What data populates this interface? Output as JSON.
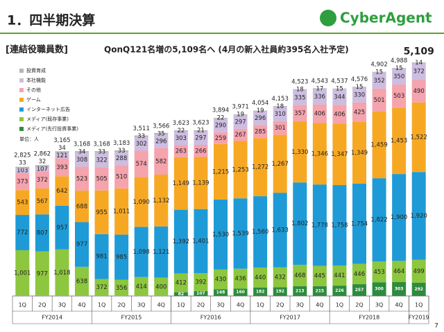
{
  "title": "1．四半期決算",
  "logo": "CyberAgent",
  "page_number": "7",
  "chart_data": {
    "type": "stacked_bar",
    "subtitle": "[連結役職員数]",
    "headline": "QonQ121名増の5,109名へ (4月の新入社員約395名入社予定)",
    "unit_note": "単位：人",
    "categories": [
      "1Q",
      "2Q",
      "3Q",
      "4Q",
      "1Q",
      "2Q",
      "3Q",
      "4Q",
      "1Q",
      "2Q",
      "3Q",
      "4Q",
      "1Q",
      "2Q",
      "3Q",
      "4Q",
      "1Q",
      "2Q",
      "3Q",
      "4Q",
      "1Q"
    ],
    "groups": [
      {
        "label": "FY2014",
        "count": 4
      },
      {
        "label": "FY2015",
        "count": 4
      },
      {
        "label": "FY2016",
        "count": 4
      },
      {
        "label": "FY2017",
        "count": 4
      },
      {
        "label": "FY2018",
        "count": 4
      },
      {
        "label": "FY2019",
        "count": 1
      }
    ],
    "series": [
      {
        "name": "メディア(先行投資事業)",
        "color": "#2e8b3e",
        "values": [
          null,
          null,
          null,
          null,
          null,
          null,
          null,
          null,
          82,
          107,
          148,
          160,
          182,
          192,
          213,
          215,
          226,
          257,
          300,
          303,
          292
        ],
        "value_labels": [
          null,
          null,
          null,
          null,
          null,
          null,
          null,
          null,
          "82",
          "107",
          "148",
          "160",
          "182",
          "192",
          "213",
          "215",
          "226",
          "257",
          "300",
          "303",
          "292"
        ]
      },
      {
        "name": "メディア(既存事業)",
        "color": "#8dc63f",
        "values": [
          1001,
          977,
          1018,
          638,
          372,
          356,
          414,
          400,
          412,
          392,
          430,
          436,
          440,
          432,
          468,
          445,
          441,
          446,
          453,
          464,
          499
        ],
        "value_labels": [
          "1,001",
          "977",
          "1,018",
          "638",
          "372",
          "356",
          "414",
          "400",
          "412",
          "392",
          "430",
          "436",
          "440",
          "432",
          "468",
          "445",
          "441",
          "446",
          "453",
          "464",
          "499"
        ]
      },
      {
        "name": "インターネット広告",
        "color": "#1e9bd7",
        "values": [
          772,
          807,
          957,
          977,
          981,
          985,
          1098,
          1121,
          1392,
          1401,
          1530,
          1539,
          1560,
          1633,
          1802,
          1778,
          1758,
          1754,
          1822,
          1900,
          1920
        ],
        "value_labels": [
          "772",
          "807",
          "957",
          "977",
          "981",
          "985",
          "1,098",
          "1,121",
          "1,392",
          "1,401",
          "1,530",
          "1,539",
          "1,560",
          "1,633",
          "1,802",
          "1,778",
          "1,758",
          "1,754",
          "1,822",
          "1,900",
          "1,920"
        ]
      },
      {
        "name": "ゲーム",
        "color": "#f7a823",
        "values": [
          543,
          567,
          642,
          688,
          955,
          1011,
          1090,
          1132,
          1149,
          1139,
          1215,
          1253,
          1272,
          1267,
          1330,
          1346,
          1347,
          1349,
          1459,
          1453,
          1522
        ],
        "value_labels": [
          "543",
          "567",
          "642",
          "688",
          "955",
          "1,011",
          "1,090",
          "1,132",
          "1,149",
          "1,139",
          "1,215",
          "1,253",
          "1,272",
          "1,267",
          "1,330",
          "1,346",
          "1,347",
          "1,349",
          "1,459",
          "1,453",
          "1,522"
        ]
      },
      {
        "name": "その他",
        "color": "#f5a3ad",
        "values": [
          373,
          372,
          393,
          523,
          505,
          510,
          574,
          582,
          263,
          266,
          259,
          267,
          285,
          301,
          357,
          406,
          406,
          425,
          501,
          503,
          490
        ]
      },
      {
        "name": "本社機能",
        "color": "#cdbde0",
        "values": [
          103,
          107,
          121,
          308,
          322,
          288,
          302,
          296,
          303,
          297,
          290,
          297,
          296,
          310,
          335,
          336,
          344,
          330,
          352,
          350,
          372
        ]
      },
      {
        "name": "投資育成",
        "color": "#b5b5b5",
        "values": [
          33,
          32,
          34,
          34,
          33,
          33,
          33,
          35,
          22,
          21,
          22,
          19,
          19,
          18,
          18,
          17,
          15,
          15,
          15,
          15,
          14
        ]
      }
    ],
    "totals": [
      2825,
      2862,
      3165,
      3168,
      3168,
      3183,
      3511,
      3566,
      3623,
      3623,
      3894,
      3971,
      4054,
      4153,
      4523,
      4543,
      4537,
      4576,
      4902,
      4988,
      5109
    ],
    "total_labels": [
      "2,825",
      "2,862",
      "3,165",
      "3,168",
      "3,168",
      "3,183",
      "3,511",
      "3,566",
      "3,623",
      "3,623",
      "3,894",
      "3,971",
      "4,054",
      "4,153",
      "4,523",
      "4,543",
      "4,537",
      "4,576",
      "4,902",
      "4,988",
      "5,109"
    ]
  }
}
